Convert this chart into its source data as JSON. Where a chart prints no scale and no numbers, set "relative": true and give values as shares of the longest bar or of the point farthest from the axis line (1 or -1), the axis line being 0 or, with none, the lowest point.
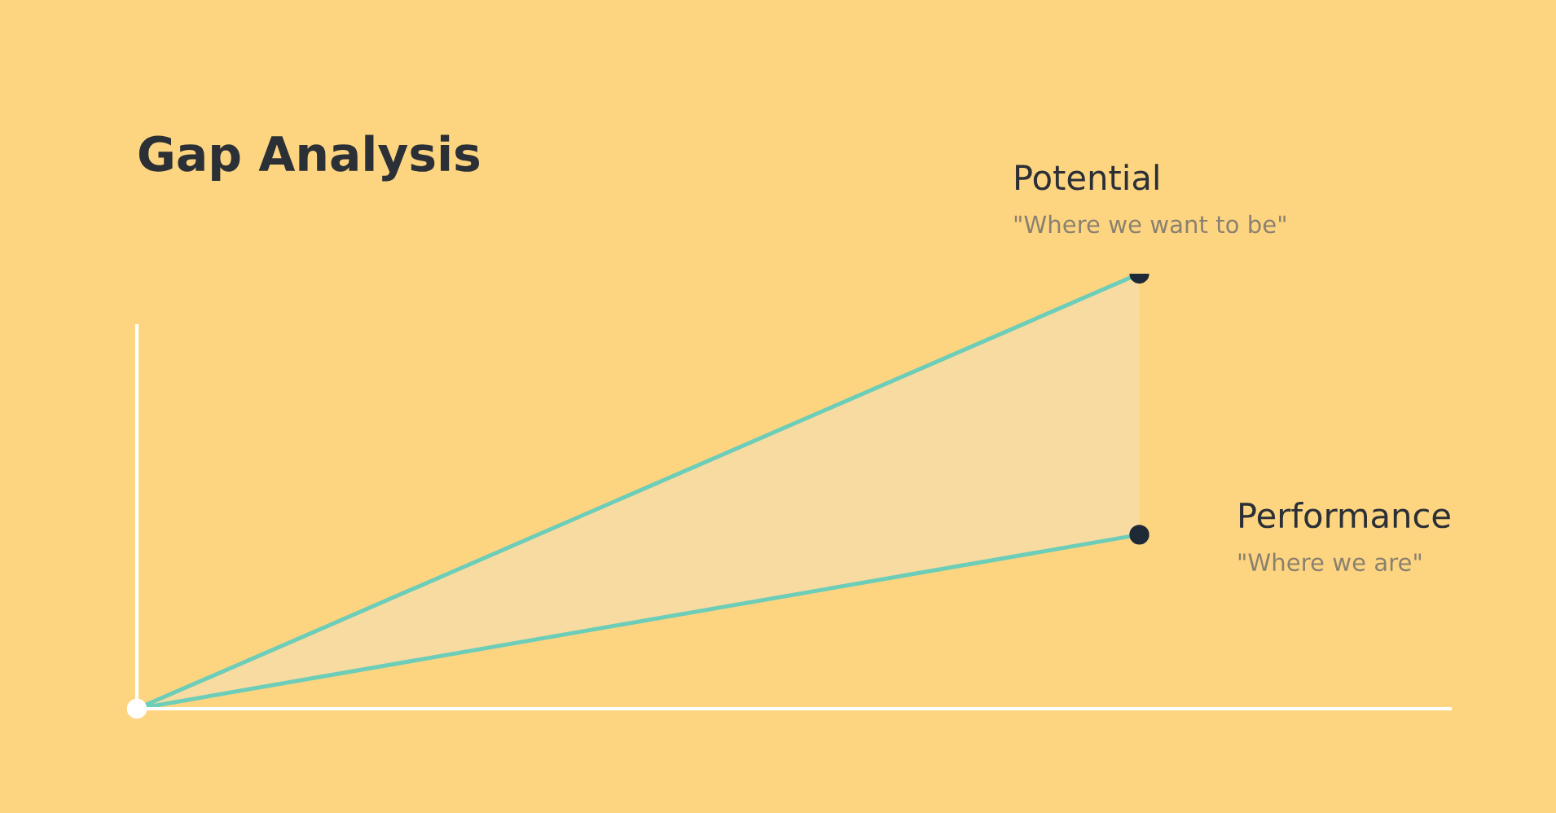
{
  "chart_data": {
    "type": "line",
    "title": "Gap Analysis",
    "relative": true,
    "categories": [
      null,
      null
    ],
    "marker": "circle",
    "legend": false,
    "series": [
      {
        "name": "Potential",
        "color": "#6ccdb8",
        "values": [
          0,
          1
        ]
      },
      {
        "name": "Performance",
        "color": "#6ccdb8",
        "values": [
          0,
          0.4
        ]
      }
    ],
    "annotations": [
      "\"Where we want to be\"",
      "\"Where we are\""
    ]
  }
}
